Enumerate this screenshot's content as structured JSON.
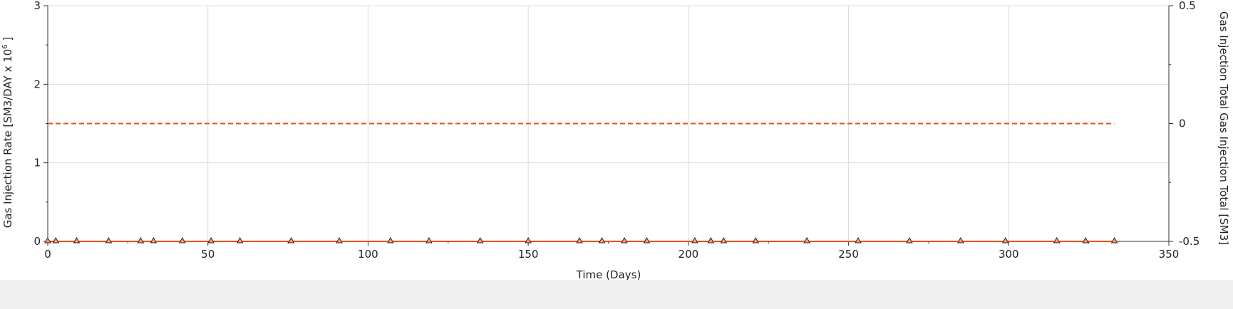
{
  "chart_data": {
    "type": "line",
    "xlabel": "Time (Days)",
    "ylabel": "Gas Injection Rate [SM3/DAY x 10",
    "ylabel_sup": "6",
    "ylabel_end": " ]",
    "y2label": "Gas Injection Total Gas Injection Total [SM3]",
    "xlim": [
      0,
      350
    ],
    "ylim": [
      0,
      3
    ],
    "y2lim": [
      -0.5,
      0.5
    ],
    "x_ticks": [
      "0",
      "50",
      "100",
      "150",
      "200",
      "250",
      "300",
      "350"
    ],
    "y_ticks": [
      "0",
      "1",
      "2",
      "3"
    ],
    "y2_ticks": [
      "-0.5",
      "0",
      "0.5"
    ],
    "grid": true,
    "series": [
      {
        "axis": "left",
        "style": "solid",
        "marker": "triangle",
        "color": "#e8501e",
        "x": [
          0,
          2.5,
          9,
          19,
          29,
          33,
          42,
          51,
          60,
          76,
          91,
          107,
          119,
          135,
          150,
          166,
          173,
          180,
          187,
          202,
          207,
          211,
          221,
          237,
          253,
          269,
          285,
          299,
          315,
          324,
          333
        ],
        "y": [
          0,
          0,
          0,
          0,
          0,
          0,
          0,
          0,
          0,
          0,
          0,
          0,
          0,
          0,
          0,
          0,
          0,
          0,
          0,
          0,
          0,
          0,
          0,
          0,
          0,
          0,
          0,
          0,
          0,
          0,
          0
        ]
      },
      {
        "axis": "right",
        "style": "dashed",
        "color": "#e8501e",
        "x": [
          0,
          333
        ],
        "y": [
          0,
          0
        ]
      }
    ]
  }
}
